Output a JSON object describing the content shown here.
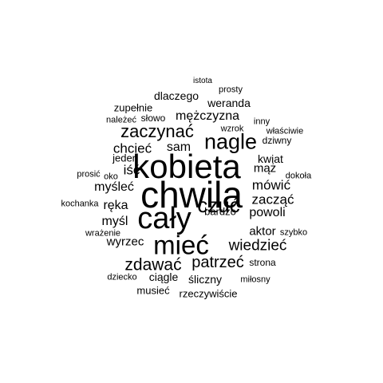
{
  "words": {
    "chwila": "chwila",
    "kobieta": "kobieta",
    "caly": "cały",
    "miec": "mieć",
    "nagle": "nagle",
    "czuc": "czuć",
    "zaczynac": "zaczynać",
    "zdawac": "zdawać",
    "patrzec": "patrzeć",
    "wiedziec": "wiedzieć",
    "chciec": "chcieć",
    "sam": "sam",
    "mezczyzna": "mężczyzna",
    "isc": "iść",
    "mowic": "mówić",
    "zaczac": "zacząć",
    "powoli": "powoli",
    "myslec": "myśleć",
    "reka": "ręka",
    "mysl": "myśl",
    "wyrzec": "wyrzec",
    "aktor": "aktor",
    "maz": "mąż",
    "kwiat": "kwiat",
    "dlaczego": "dlaczego",
    "weranda": "weranda",
    "zupelnie": "zupełnie",
    "jeden": "jeden",
    "bardzo": "bardzo",
    "ciagle": "ciągle",
    "sliczny": "śliczny",
    "musiec": "musieć",
    "rzeczywiscie": "rzeczywiście",
    "dziwny": "dziwny",
    "wzrok": "wzrok",
    "inny": "inny",
    "wlasciwie": "właściwie",
    "nalezec": "należeć",
    "slowo": "słowo",
    "istota": "istota",
    "prosty": "prosty",
    "prosic": "prosić",
    "oko": "oko",
    "dokola": "dokoła",
    "kochanka": "kochanka",
    "wrazenie": "wrażenie",
    "szybko": "szybko",
    "strona": "strona",
    "dziecko": "dziecko",
    "milosny": "miłosny"
  },
  "colors": {
    "background": "#ffffff",
    "text": "#000000"
  }
}
